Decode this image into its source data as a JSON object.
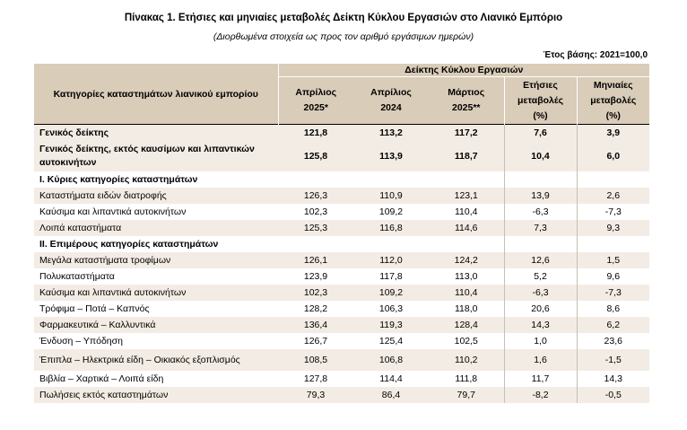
{
  "title": "Πίνακας 1. Ετήσιες και μηνιαίες μεταβολές Δείκτη Κύκλου Εργασιών στο Λιανικό Εμπόριο",
  "subtitle": "(Διορθωμένα στοιχεία ως προς τον αριθμό εργάσιμων ημερών)",
  "base_year": "Έτος βάσης: 2021=100,0",
  "header": {
    "category": "Κατηγορίες καταστημάτων λιανικού εμπορίου",
    "group": "Δείκτης Κύκλου Εργασιών",
    "columns": [
      {
        "top": "Απρίλιος",
        "bottom": "2025*"
      },
      {
        "top": "Απρίλιος",
        "bottom": "2024"
      },
      {
        "top": "Μάρτιος",
        "bottom": "2025**"
      },
      {
        "top": "Ετήσιες μεταβολές",
        "bottom": "(%)"
      },
      {
        "top": "Μηνιαίες μεταβολές",
        "bottom": "(%)"
      }
    ]
  },
  "rows": [
    {
      "label": "Γενικός δείκτης",
      "values": [
        "121,8",
        "113,2",
        "117,2",
        "7,6",
        "3,9"
      ]
    },
    {
      "label": "Γενικός δείκτης, εκτός καυσίμων και λιπαντικών αυτοκινήτων",
      "values": [
        "125,8",
        "113,9",
        "118,7",
        "10,4",
        "6,0"
      ]
    },
    {
      "label": "I. Κύριες κατηγορίες καταστημάτων",
      "values": [
        "",
        "",
        "",
        "",
        ""
      ]
    },
    {
      "label": "Καταστήματα ειδών διατροφής",
      "values": [
        "126,3",
        "110,9",
        "123,1",
        "13,9",
        "2,6"
      ]
    },
    {
      "label": "Καύσιμα και λιπαντικά αυτοκινήτων",
      "values": [
        "102,3",
        "109,2",
        "110,4",
        "-6,3",
        "-7,3"
      ]
    },
    {
      "label": "Λοιπά καταστήματα",
      "values": [
        "125,3",
        "116,8",
        "114,6",
        "7,3",
        "9,3"
      ]
    },
    {
      "label": "II. Επιμέρους κατηγορίες καταστημάτων",
      "values": [
        "",
        "",
        "",
        "",
        ""
      ]
    },
    {
      "label": "Μεγάλα καταστήματα τροφίμων",
      "values": [
        "126,1",
        "112,0",
        "124,2",
        "12,6",
        "1,5"
      ]
    },
    {
      "label": "Πολυκαταστήματα",
      "values": [
        "123,9",
        "117,8",
        "113,0",
        "5,2",
        "9,6"
      ]
    },
    {
      "label": "Καύσιμα και λιπαντικά αυτοκινήτων",
      "values": [
        "102,3",
        "109,2",
        "110,4",
        "-6,3",
        "-7,3"
      ]
    },
    {
      "label": "Τρόφιμα – Ποτά – Καπνός",
      "values": [
        "128,2",
        "106,3",
        "118,0",
        "20,6",
        "8,6"
      ]
    },
    {
      "label": "Φαρμακευτικά – Καλλυντικά",
      "values": [
        "136,4",
        "119,3",
        "128,4",
        "14,3",
        "6,2"
      ]
    },
    {
      "label": "Ένδυση – Υπόδηση",
      "values": [
        "126,7",
        "125,4",
        "102,5",
        "1,0",
        "23,6"
      ]
    },
    {
      "label": "Έπιπλα – Ηλεκτρικά είδη – Οικιακός εξοπλισμός",
      "values": [
        "108,5",
        "106,8",
        "110,2",
        "1,6",
        "-1,5"
      ]
    },
    {
      "label": "Βιβλία – Χαρτικά – Λοιπά είδη",
      "values": [
        "127,8",
        "114,4",
        "111,8",
        "11,7",
        "14,3"
      ]
    },
    {
      "label": "Πωλήσεις εκτός καταστημάτων",
      "values": [
        "79,3",
        "86,4",
        "79,7",
        "-8,2",
        "-0,5"
      ]
    }
  ]
}
